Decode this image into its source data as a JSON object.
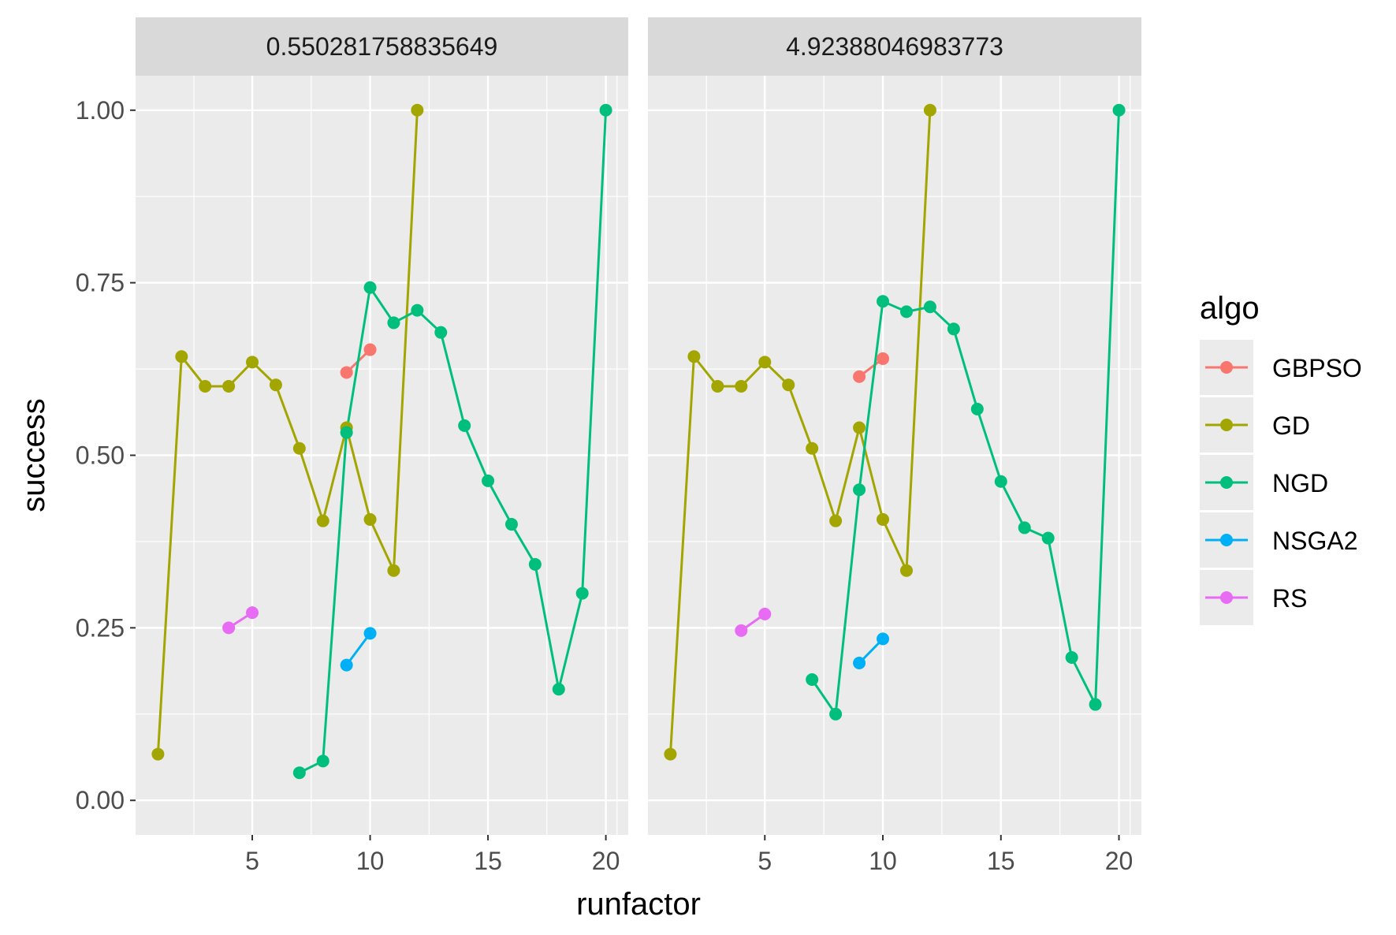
{
  "chart_data": {
    "type": "line",
    "xlabel": "runfactor",
    "ylabel": "success",
    "xlim": [
      0.05,
      20.95
    ],
    "ylim": [
      -0.05,
      1.05
    ],
    "x_ticks": [
      5,
      10,
      15,
      20
    ],
    "x_tick_labels": [
      "5",
      "10",
      "15",
      "20"
    ],
    "y_ticks": [
      0,
      0.25,
      0.5,
      0.75,
      1
    ],
    "y_tick_labels": [
      "0.00",
      "0.25",
      "0.50",
      "0.75",
      "1.00"
    ],
    "grid": true,
    "legend": {
      "title": "algo",
      "position": "right",
      "entries": [
        {
          "name": "GBPSO",
          "color": "#F8766D"
        },
        {
          "name": "GD",
          "color": "#A3A500"
        },
        {
          "name": "NGD",
          "color": "#00BF7D"
        },
        {
          "name": "NSGA2",
          "color": "#00B0F6"
        },
        {
          "name": "RS",
          "color": "#E76BF3"
        }
      ]
    },
    "panels": [
      {
        "strip_label": "0.550281758835649",
        "series": [
          {
            "name": "GBPSO",
            "x": [
              9,
              10
            ],
            "y": [
              0.62,
              0.653
            ]
          },
          {
            "name": "GD",
            "x": [
              1,
              2,
              3,
              4,
              5,
              6,
              7,
              8,
              9,
              10,
              11,
              12
            ],
            "y": [
              0.067,
              0.643,
              0.6,
              0.6,
              0.635,
              0.602,
              0.51,
              0.405,
              0.54,
              0.407,
              0.333,
              1.0
            ]
          },
          {
            "name": "NGD",
            "x": [
              7,
              8,
              9,
              10,
              11,
              12,
              13,
              14,
              15,
              16,
              17,
              18,
              19,
              20
            ],
            "y": [
              0.04,
              0.057,
              0.533,
              0.743,
              0.692,
              0.71,
              0.678,
              0.543,
              0.463,
              0.4,
              0.342,
              0.161,
              0.3,
              1.0
            ]
          },
          {
            "name": "NSGA2",
            "x": [
              9,
              10
            ],
            "y": [
              0.196,
              0.242
            ]
          },
          {
            "name": "RS",
            "x": [
              4,
              5
            ],
            "y": [
              0.25,
              0.272
            ]
          }
        ]
      },
      {
        "strip_label": "4.92388046983773",
        "series": [
          {
            "name": "GBPSO",
            "x": [
              9,
              10
            ],
            "y": [
              0.614,
              0.64
            ]
          },
          {
            "name": "GD",
            "x": [
              1,
              2,
              3,
              4,
              5,
              6,
              7,
              8,
              9,
              10,
              11,
              12
            ],
            "y": [
              0.067,
              0.643,
              0.6,
              0.6,
              0.635,
              0.602,
              0.51,
              0.405,
              0.54,
              0.407,
              0.333,
              1.0
            ]
          },
          {
            "name": "NGD",
            "x": [
              7,
              8,
              9,
              10,
              11,
              12,
              13,
              14,
              15,
              16,
              17,
              18,
              19,
              20
            ],
            "y": [
              0.175,
              0.125,
              0.45,
              0.723,
              0.708,
              0.715,
              0.683,
              0.567,
              0.462,
              0.395,
              0.38,
              0.207,
              0.139,
              1.0
            ]
          },
          {
            "name": "NSGA2",
            "x": [
              9,
              10
            ],
            "y": [
              0.199,
              0.234
            ]
          },
          {
            "name": "RS",
            "x": [
              4,
              5
            ],
            "y": [
              0.246,
              0.27
            ]
          }
        ]
      }
    ]
  }
}
